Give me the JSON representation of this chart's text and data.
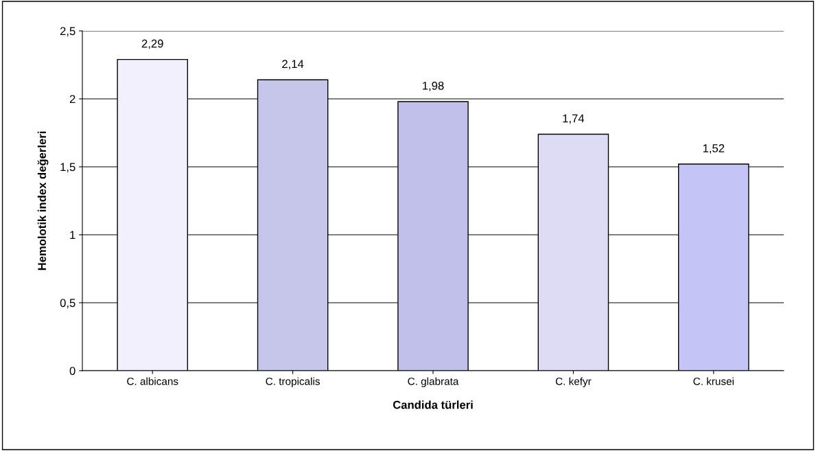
{
  "chart_data": {
    "type": "bar",
    "xlabel": "Candida türleri",
    "ylabel": "Hemolotik index değerleri",
    "categories": [
      "C. albicans",
      "C. tropicalis",
      "C. glabrata",
      "C. kefyr",
      "C. krusei"
    ],
    "values": [
      2.29,
      2.14,
      1.98,
      1.74,
      1.52
    ],
    "value_labels": [
      "2,29",
      "2,14",
      "1,98",
      "1,74",
      "1,52"
    ],
    "colors": [
      "#f2f0fa",
      "#c6c6ea",
      "#c0c0ea",
      "#dcdcf4",
      "#c4c4f6"
    ],
    "ylim": [
      0,
      2.5
    ],
    "yticks": [
      0,
      {
        "value": 0.5,
        "label": "0,5"
      },
      1,
      {
        "value": 1.5,
        "label": "1,5"
      },
      2,
      {
        "value": 2.5,
        "label": "2,5"
      }
    ],
    "grid": "y",
    "legend": false
  }
}
